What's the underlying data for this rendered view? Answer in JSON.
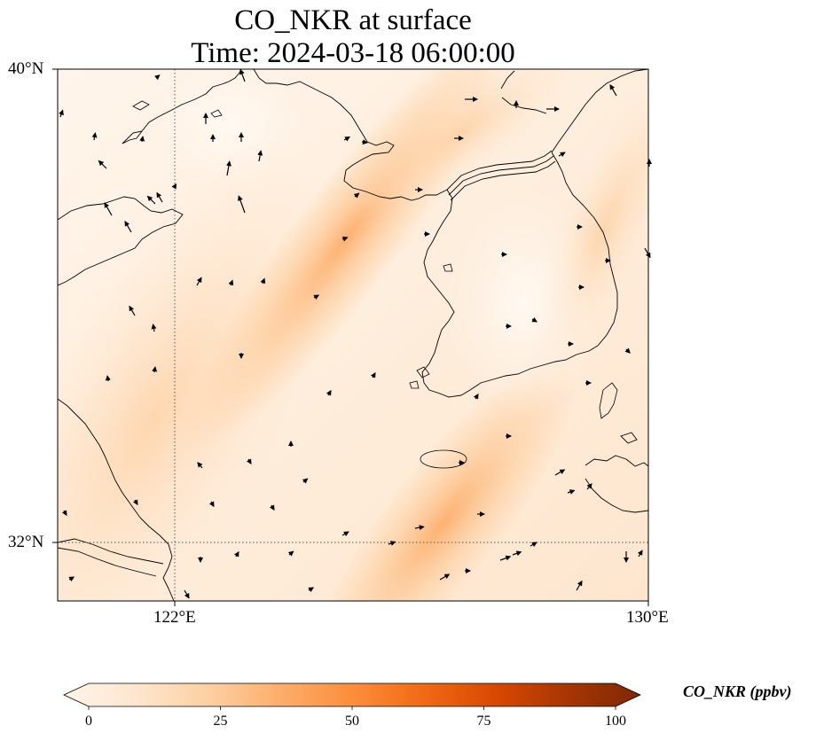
{
  "title": {
    "line1": "CO_NKR at surface",
    "line2": "Time: 2024-03-18 06:00:00"
  },
  "axes": {
    "lat_labels": [
      "40°N",
      "32°N"
    ],
    "lon_labels": [
      "122°E",
      "130°E"
    ]
  },
  "colorbar": {
    "label": "CO_NKR (ppbv)",
    "ticks": [
      "0",
      "25",
      "50",
      "75",
      "100"
    ],
    "colors": [
      "#fff5eb",
      "#fee6ce",
      "#fdd0a2",
      "#fdae6b",
      "#fd8d3c",
      "#f16913",
      "#d94801",
      "#a63603",
      "#7f2704"
    ]
  },
  "chart_data": {
    "type": "heatmap",
    "title": "CO_NKR at surface, Time: 2024-03-18 06:00:00",
    "variable": "CO_NKR",
    "units": "ppbv",
    "level": "surface",
    "time": "2024-03-18 06:00:00",
    "lon_range": [
      120,
      130
    ],
    "lat_range": [
      31,
      40
    ],
    "gridlines_lon": [
      122
    ],
    "gridlines_lat": [
      32
    ],
    "value_range": [
      0,
      100
    ],
    "colormap": "Oranges",
    "features": [
      {
        "name": "plume NE-SW over Yellow Sea",
        "approx_value": 30
      },
      {
        "name": "plume south of Korea",
        "approx_value": 35
      },
      {
        "name": "background",
        "approx_value": 10
      }
    ]
  }
}
